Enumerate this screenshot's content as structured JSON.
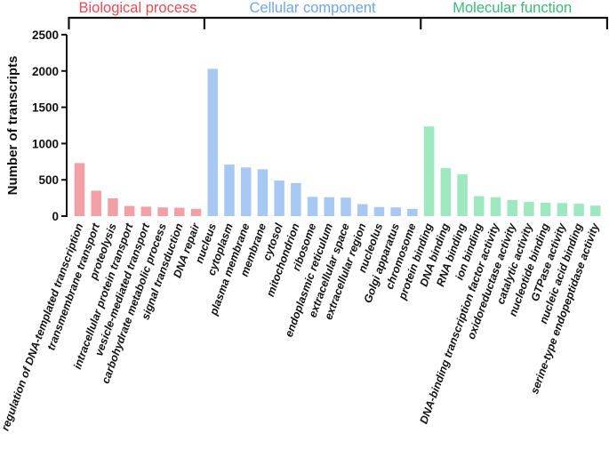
{
  "chart_data": {
    "type": "bar",
    "ylabel": "Number of transcripts",
    "xlabel": "",
    "ylim": [
      0,
      2500
    ],
    "yticks": [
      0,
      500,
      1000,
      1500,
      2000,
      2500
    ],
    "ytick_labels": [
      "0",
      "500",
      "1000",
      "1500",
      "2000",
      "2500"
    ],
    "grid": false,
    "categories": [
      "regulation of DNA-templated transcription",
      "transmembrane transport",
      "proteolysis",
      "intracellular protein transport",
      "vesicle-mediated transport",
      "carbohydrate metabolic process",
      "signal transduction",
      "DNA repair",
      "nucleus",
      "cytoplasm",
      "plasma membrane",
      "membrane",
      "cytosol",
      "mitochondrion",
      "ribosome",
      "endoplasmic reticulum",
      "extracellular space",
      "extracellular region",
      "nucleolus",
      "Golgi apparatus",
      "chromosome",
      "protein binding",
      "DNA binding",
      "RNA binding",
      "ion binding",
      "DNA-binding transcription factor activity",
      "oxidoreductase activity",
      "catalytic activity",
      "nucleotide binding",
      "GTPase activity",
      "nucleic acid binding",
      "serine-type endopeptidase activity"
    ],
    "groups": [
      {
        "name": "Biological process",
        "color": "#f2a0a6",
        "title_color": "#e84b55",
        "values": [
          730,
          350,
          245,
          140,
          130,
          120,
          115,
          100
        ]
      },
      {
        "name": "Cellular component",
        "color": "#a6c8f2",
        "title_color": "#6ea6ea",
        "values": [
          2030,
          710,
          670,
          645,
          490,
          455,
          265,
          260,
          255,
          165,
          125,
          120,
          100
        ]
      },
      {
        "name": "Molecular function",
        "color": "#9ee8c0",
        "title_color": "#3cb878",
        "values": [
          1235,
          660,
          575,
          275,
          260,
          220,
          195,
          185,
          180,
          170,
          145
        ]
      }
    ]
  }
}
